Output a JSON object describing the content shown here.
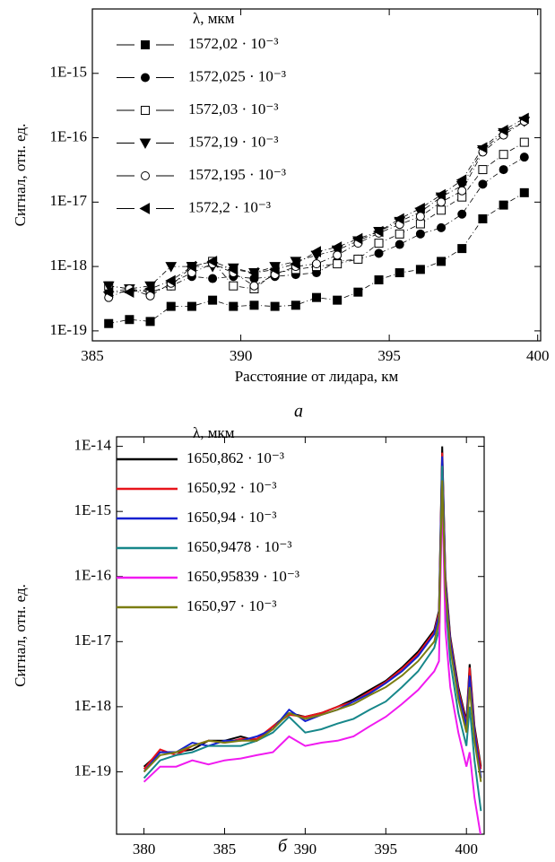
{
  "chart_data": [
    {
      "type": "scatter",
      "caption": "а",
      "x_label": "Расстояние от лидара, км",
      "y_label": "Сигнал, отн. ед.",
      "legend_title": "λ, мкм",
      "xlim": [
        385,
        400.1
      ],
      "xticks": [
        385,
        390,
        395,
        400
      ],
      "ylim": [
        7e-20,
        1e-14
      ],
      "log_y": true,
      "yticks": [
        {
          "value": 1e-19,
          "label": "1E-19"
        },
        {
          "value": 1e-18,
          "label": "1E-18"
        },
        {
          "value": 1e-17,
          "label": "1E-17"
        },
        {
          "value": 1e-16,
          "label": "1E-16"
        },
        {
          "value": 1e-15,
          "label": "1E-15"
        }
      ],
      "x": [
        385.55,
        386.25,
        386.95,
        387.65,
        388.35,
        389.05,
        389.75,
        390.45,
        391.15,
        391.85,
        392.55,
        393.25,
        393.95,
        394.65,
        395.35,
        396.05,
        396.75,
        397.45,
        398.15,
        398.85,
        399.55
      ],
      "series": [
        {
          "name": "1572,02 · 10⁻³",
          "color": "#000000",
          "marker": "square",
          "filled": true,
          "values": [
            1.3e-19,
            1.5e-19,
            1.4e-19,
            2.4e-19,
            2.4e-19,
            3e-19,
            2.4e-19,
            2.5e-19,
            2.4e-19,
            2.5e-19,
            3.3e-19,
            3e-19,
            4e-19,
            6.2e-19,
            8e-19,
            9e-19,
            1.2e-18,
            1.9e-18,
            5.5e-18,
            9e-18,
            1.4e-17
          ]
        },
        {
          "name": "1572,025 · 10⁻³",
          "color": "#000000",
          "marker": "circle",
          "filled": true,
          "values": [
            4e-19,
            4.5e-19,
            4e-19,
            5e-19,
            7e-19,
            6.5e-19,
            7e-19,
            6.5e-19,
            7e-19,
            7.5e-19,
            8e-19,
            1.2e-18,
            1.3e-18,
            1.6e-18,
            2.2e-18,
            3.2e-18,
            4e-18,
            6.5e-18,
            1.9e-17,
            3.2e-17,
            5e-17
          ]
        },
        {
          "name": "1572,03 · 10⁻³",
          "color": "#000000",
          "marker": "square",
          "filled": false,
          "values": [
            5e-19,
            4.5e-19,
            4e-19,
            5e-19,
            1e-18,
            1.2e-18,
            5e-19,
            4.5e-19,
            8e-19,
            9e-19,
            1e-18,
            1.1e-18,
            1.3e-18,
            2.3e-18,
            3.2e-18,
            4.6e-18,
            7.5e-18,
            1.2e-17,
            3.2e-17,
            5.5e-17,
            8.5e-17
          ]
        },
        {
          "name": "1572,19 · 10⁻³",
          "color": "#000000",
          "marker": "triangle-down",
          "filled": true,
          "values": [
            5e-19,
            4.5e-19,
            5e-19,
            1e-18,
            1e-18,
            1e-18,
            9.5e-19,
            8e-19,
            1e-18,
            1.2e-18,
            1.5e-18,
            1.8e-18,
            2.5e-18,
            3.5e-18,
            5e-18,
            7e-18,
            1.2e-17,
            1.8e-17,
            6.5e-17,
            1.2e-16,
            1.8e-16
          ]
        },
        {
          "name": "1572,195 · 10⁻³",
          "color": "#000000",
          "marker": "circle",
          "filled": false,
          "values": [
            3.3e-19,
            4.5e-19,
            3.5e-19,
            5.5e-19,
            8e-19,
            1.1e-18,
            8e-19,
            5e-19,
            7.5e-19,
            1e-18,
            1.1e-18,
            1.5e-18,
            2.3e-18,
            3.3e-18,
            4.5e-18,
            6e-18,
            1e-17,
            1.5e-17,
            6e-17,
            1.1e-16,
            1.8e-16
          ]
        },
        {
          "name": "1572,2 · 10⁻³",
          "color": "#000000",
          "marker": "triangle-left",
          "filled": true,
          "values": [
            4e-19,
            4e-19,
            4.5e-19,
            6e-19,
            1e-18,
            1.2e-18,
            9e-19,
            8e-19,
            9e-19,
            1.1e-18,
            1.7e-18,
            2e-18,
            2.7e-18,
            3.5e-18,
            5.5e-18,
            8e-18,
            1.3e-17,
            2.2e-17,
            7e-17,
            1.3e-16,
            2e-16
          ]
        }
      ]
    },
    {
      "type": "line",
      "caption": "б",
      "x_label": "Расстояние от лидара, км",
      "y_label": "Сигнал, отн. ед.",
      "legend_title": "λ, мкм",
      "xlim": [
        378.3,
        401.1
      ],
      "xticks": [
        380,
        385,
        390,
        395,
        400
      ],
      "ylim": [
        1.1e-20,
        1.4e-14
      ],
      "log_y": true,
      "yticks": [
        {
          "value": 1e-19,
          "label": "1E-19"
        },
        {
          "value": 1e-18,
          "label": "1E-18"
        },
        {
          "value": 1e-17,
          "label": "1E-17"
        },
        {
          "value": 1e-16,
          "label": "1E-16"
        },
        {
          "value": 1e-15,
          "label": "1E-15"
        },
        {
          "value": 1e-14,
          "label": "1E-14"
        }
      ],
      "x": [
        380,
        381,
        382,
        383,
        384,
        385,
        386,
        387,
        388,
        389,
        390,
        391,
        392,
        393,
        394,
        395,
        396,
        397,
        398,
        398.3,
        398.5,
        398.7,
        399,
        399.5,
        400,
        400.2,
        400.5,
        400.9
      ],
      "series": [
        {
          "name": "1650,862 · 10⁻³",
          "color": "#000000",
          "values": [
            1.2e-19,
            2e-19,
            2e-19,
            2.2e-19,
            3e-19,
            3e-19,
            3.5e-19,
            3e-19,
            5e-19,
            8e-19,
            7e-19,
            8e-19,
            1e-18,
            1.3e-18,
            1.8e-18,
            2.5e-18,
            4e-18,
            7e-18,
            1.5e-17,
            3e-17,
            1e-14,
            1e-16,
            1.2e-17,
            2e-18,
            6e-19,
            4.5e-18,
            5e-19,
            1.2e-19
          ]
        },
        {
          "name": "1650,92 · 10⁻³",
          "color": "#e8141b",
          "values": [
            1.1e-19,
            2.2e-19,
            1.8e-19,
            2.5e-19,
            3e-19,
            2.8e-19,
            3.2e-19,
            3.2e-19,
            5e-19,
            7.5e-19,
            7e-19,
            8e-19,
            1e-18,
            1.2e-18,
            1.7e-18,
            2.4e-18,
            3.8e-18,
            6.5e-18,
            1.4e-17,
            2.8e-17,
            8e-15,
            9e-17,
            1.1e-17,
            1.8e-18,
            5.5e-19,
            4e-18,
            4.5e-19,
            1.1e-19
          ]
        },
        {
          "name": "1650,94 · 10⁻³",
          "color": "#1420d0",
          "values": [
            1e-19,
            2e-19,
            2e-19,
            2.8e-19,
            2.5e-19,
            3e-19,
            3e-19,
            3.5e-19,
            4.5e-19,
            9e-19,
            6e-19,
            7.5e-19,
            9e-19,
            1.2e-18,
            1.6e-18,
            2.3e-18,
            3.5e-18,
            6e-18,
            1.3e-17,
            2.5e-17,
            7e-15,
            8e-17,
            1e-17,
            1.6e-18,
            5e-19,
            3e-18,
            4e-19,
            8e-20
          ]
        },
        {
          "name": "1650,9478 · 10⁻³",
          "color": "#17878a",
          "values": [
            8e-20,
            1.5e-19,
            1.8e-19,
            2e-19,
            2.5e-19,
            2.5e-19,
            2.5e-19,
            3e-19,
            4e-19,
            7e-19,
            4e-19,
            4.5e-19,
            5.5e-19,
            6.5e-19,
            9e-19,
            1.2e-18,
            2e-18,
            3.5e-18,
            8e-18,
            1.5e-17,
            5e-15,
            4e-17,
            5e-18,
            8e-19,
            2.5e-19,
            1e-18,
            1.5e-19,
            2.5e-20
          ]
        },
        {
          "name": "1650,95839 · 10⁻³",
          "color": "#f01af0",
          "values": [
            7e-20,
            1.2e-19,
            1.2e-19,
            1.5e-19,
            1.3e-19,
            1.5e-19,
            1.6e-19,
            1.8e-19,
            2e-19,
            3.5e-19,
            2.5e-19,
            2.8e-19,
            3e-19,
            3.5e-19,
            5e-19,
            7e-19,
            1.1e-18,
            1.8e-18,
            3.5e-18,
            5e-18,
            2e-15,
            1.5e-17,
            2e-18,
            4e-19,
            1.2e-19,
            2e-19,
            4e-20,
            1e-20
          ]
        },
        {
          "name": "1650,97 · 10⁻³",
          "color": "#7b7d12",
          "values": [
            1e-19,
            1.8e-19,
            2e-19,
            2.5e-19,
            3e-19,
            2.8e-19,
            3e-19,
            3e-19,
            4.5e-19,
            8e-19,
            6.5e-19,
            7.5e-19,
            9e-19,
            1.1e-18,
            1.5e-18,
            2e-18,
            3e-18,
            5e-18,
            1e-17,
            2e-17,
            3e-15,
            6e-17,
            8e-18,
            1.3e-18,
            4e-19,
            2e-18,
            3e-19,
            7e-20
          ]
        }
      ]
    }
  ]
}
